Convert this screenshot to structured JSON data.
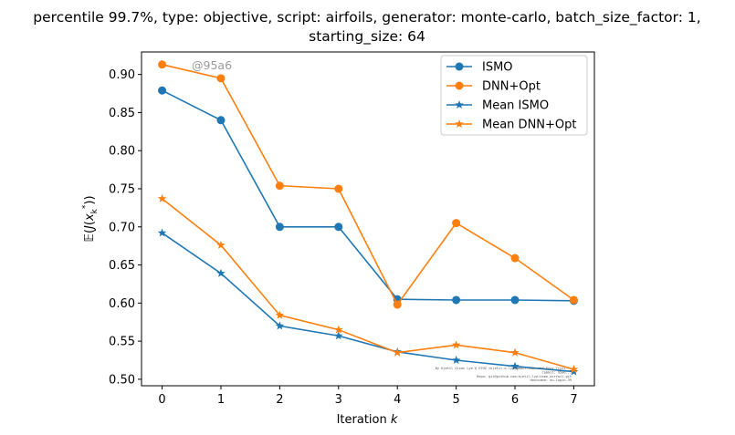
{
  "chart_data": {
    "type": "line",
    "title_line1": "percentile 99.7%, type: objective, script: airfoils, generator: monte-carlo, batch_size_factor: 1,",
    "title_line2": "starting_size: 64",
    "xlabel": "Iteration k",
    "ylabel": "E(J(x_k*))",
    "x": [
      0,
      1,
      2,
      3,
      4,
      5,
      6,
      7
    ],
    "xlim": [
      -0.35,
      7.35
    ],
    "ylim": [
      0.4915,
      0.9295
    ],
    "yticks": [
      "0.50",
      "0.55",
      "0.60",
      "0.65",
      "0.70",
      "0.75",
      "0.80",
      "0.85",
      "0.90"
    ],
    "xticks": [
      "0",
      "1",
      "2",
      "3",
      "4",
      "5",
      "6",
      "7"
    ],
    "grid": false,
    "legend_placement": "top-right",
    "series": [
      {
        "name": "ISMO",
        "color": "#1f77b4",
        "marker": "circle",
        "values": [
          0.879,
          0.84,
          0.7,
          0.7,
          0.605,
          0.604,
          0.604,
          0.603
        ]
      },
      {
        "name": "DNN+Opt",
        "color": "#ff7f0e",
        "marker": "circle",
        "values": [
          0.913,
          0.895,
          0.754,
          0.75,
          0.598,
          0.705,
          0.659,
          0.604
        ]
      },
      {
        "name": "Mean ISMO",
        "color": "#1f77b4",
        "marker": "star",
        "values": [
          0.692,
          0.639,
          0.57,
          0.557,
          0.536,
          0.525,
          0.517,
          0.51
        ]
      },
      {
        "name": "Mean DNN+Opt",
        "color": "#ff7f0e",
        "marker": "star",
        "values": [
          0.737,
          0.676,
          0.584,
          0.565,
          0.535,
          0.545,
          0.535,
          0.513
        ]
      }
    ],
    "watermark": "@95a6",
    "footnote_lines": [
      "By Kjetil Olsen Lye @ ETHZ <kjetil.o.lye@gmail.com> and Ercy Tryti...",
      "Commit: 95a6...",
      "Repo: git@github.com:kjetil-lye/ismo_airfoil.git",
      "Hostname: eu-login-39"
    ]
  }
}
